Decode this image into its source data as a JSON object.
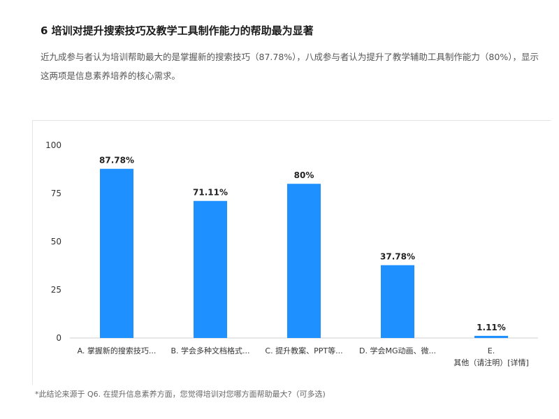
{
  "header": {
    "title": "6 培训对提升搜索技巧及教学工具制作能力的帮助最为显著",
    "description": "近九成参与者认为培训帮助最大的是掌握新的搜索技巧（87.78%），八成参与者认为提升了教学辅助工具制作能力（80%），显示这两项是信息素养培养的核心需求。"
  },
  "footnote": "*此结论来源于 Q6. 在提升信息素养方面，您觉得培训对您哪方面帮助最大?（可多选)",
  "colors": {
    "bar": "#1e90ff",
    "axis": "#999999",
    "text": "#333333"
  },
  "chart_data": {
    "type": "bar",
    "categories": [
      "A. 掌握新的搜索技巧...",
      "B. 学会多种文档格式...",
      "C. 提升教案、PPT等...",
      "D. 学会MG动画、微...",
      "E.\n其他（请注明）[详情]"
    ],
    "values": [
      87.78,
      71.11,
      80,
      37.78,
      1.11
    ],
    "data_labels": [
      "87.78%",
      "71.11%",
      "80%",
      "37.78%",
      "1.11%"
    ],
    "yticks": [
      0,
      25,
      50,
      75,
      100
    ],
    "ylim": [
      0,
      100
    ],
    "grid": false,
    "xlabel": "",
    "ylabel": ""
  }
}
